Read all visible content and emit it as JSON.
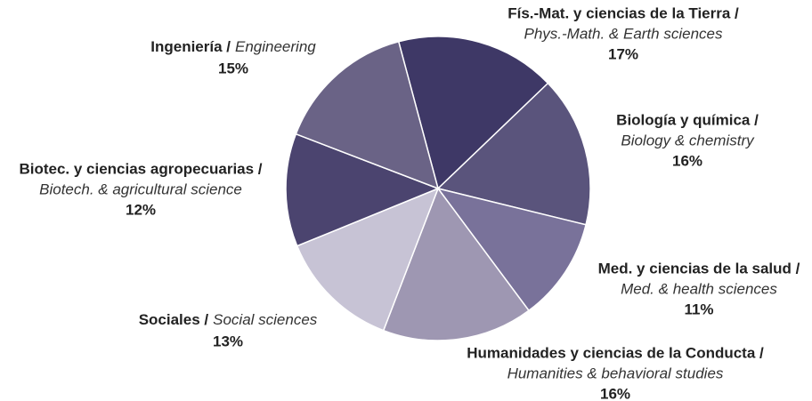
{
  "chart_data": {
    "type": "pie",
    "categories": [
      "Fís.-Mat. y ciencias de la Tierra /",
      "Biología y química /",
      "Med. y ciencias de la salud /",
      "Humanidades y ciencias de la Conducta /",
      "Sociales /",
      "Biotec. y ciencias agropecuarias /",
      "Ingeniería /"
    ],
    "subcategories": [
      "Phys.-Math. & Earth sciences",
      "Biology & chemistry",
      "Med. & health  sciences",
      "Humanities & behavioral studies",
      "Social sciences",
      "Biotech. &  agricultural science",
      "Engineering"
    ],
    "values": [
      17,
      16,
      11,
      16,
      13,
      12,
      15
    ],
    "value_labels": [
      "17%",
      "16%",
      "11%",
      "16%",
      "13%",
      "12%",
      "15%"
    ],
    "colors": [
      "#3e3866",
      "#5a547c",
      "#79729a",
      "#9e97b2",
      "#c7c3d5",
      "#4b446f",
      "#6a6386"
    ]
  }
}
